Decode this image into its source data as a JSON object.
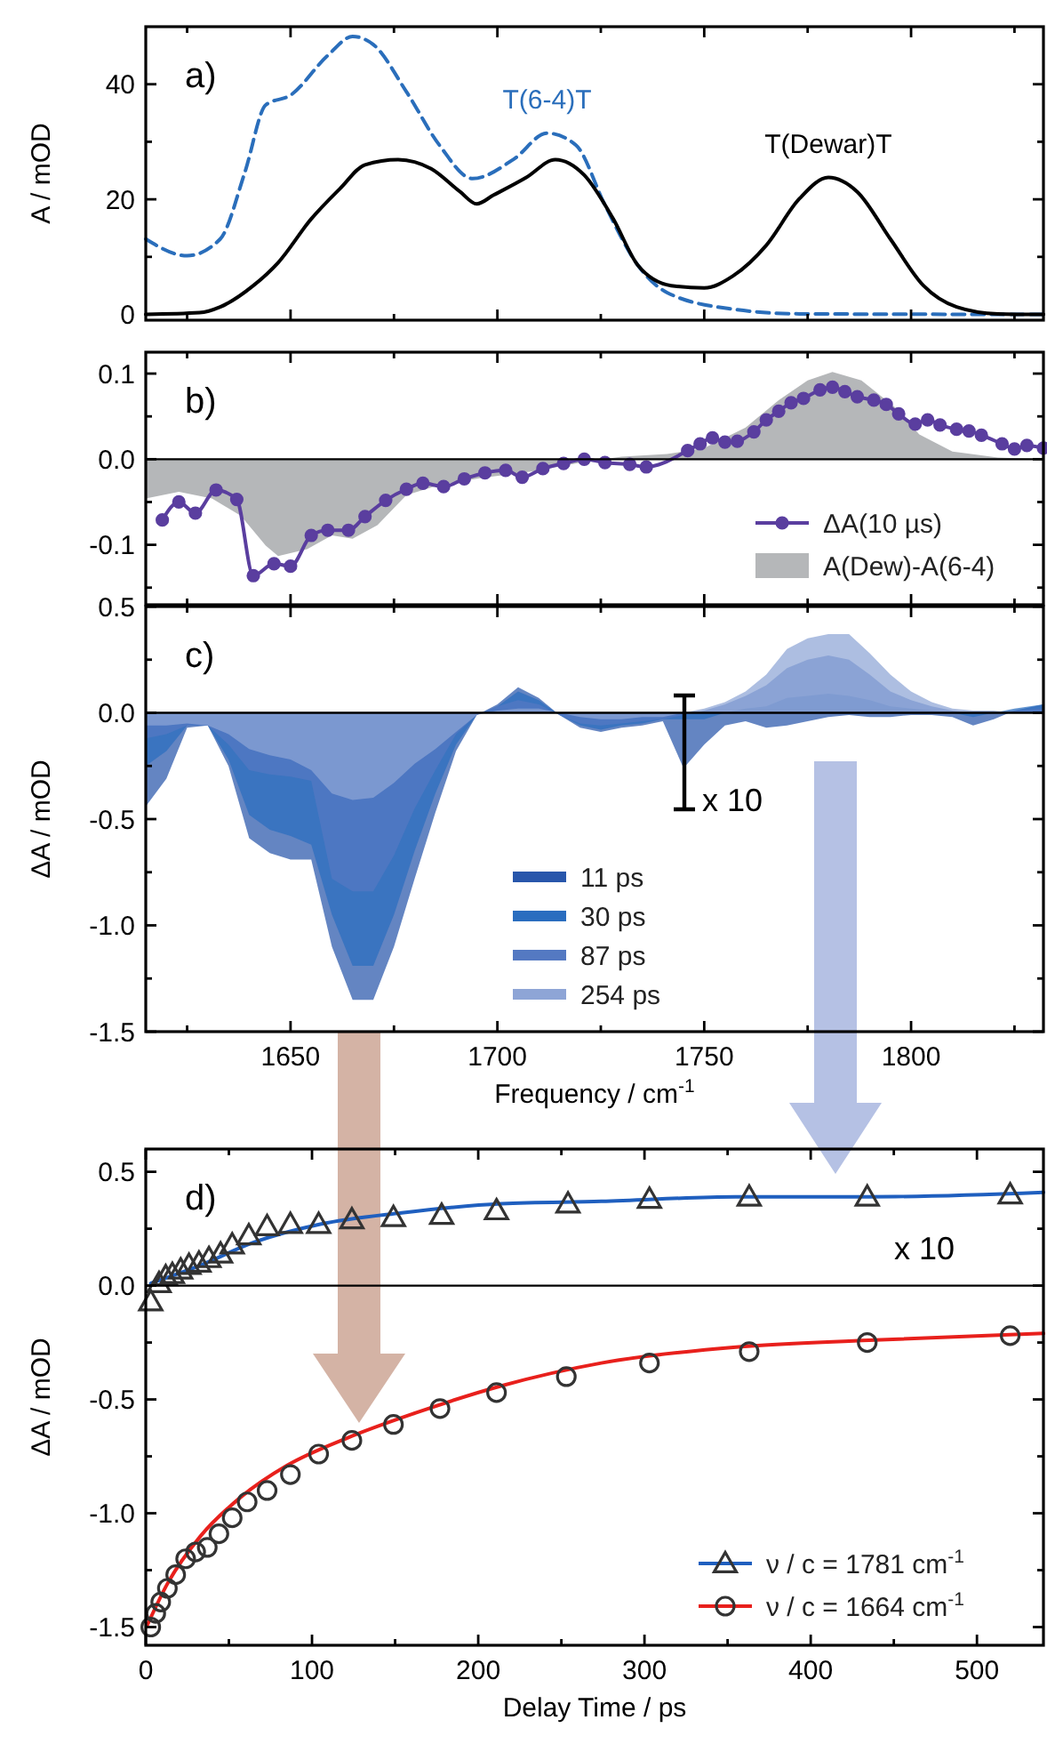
{
  "chart_data": [
    {
      "type": "line",
      "ylabel": "A / mOD",
      "annotations": [
        "a)"
      ],
      "xlim": [
        1615,
        1832
      ],
      "ylim": [
        -1,
        50
      ],
      "xticks": [
        1650,
        1700,
        1750,
        1800,
        {
          "value": 1625,
          "label": null
        },
        {
          "value": 1675,
          "label": null
        },
        {
          "value": 1725,
          "label": null
        },
        {
          "value": 1775,
          "label": null
        },
        {
          "value": 1825,
          "label": null
        }
      ],
      "yticks": [
        0,
        20,
        40,
        {
          "value": 10,
          "label": null
        },
        {
          "value": 30,
          "label": null
        }
      ],
      "tick_labels": "y",
      "series": [
        {
          "name": "T(6-4)T",
          "color": "#2a6ebb",
          "line_style": "dashed",
          "x": [
            1615,
            1625,
            1633,
            1639,
            1644,
            1650,
            1659,
            1665,
            1670,
            1678,
            1686,
            1694,
            1704,
            1712,
            1719,
            1726,
            1734,
            1741,
            1757,
            1773,
            1832
          ],
          "values": [
            13.1,
            10.2,
            13.1,
            24.8,
            36.4,
            38.1,
            45,
            48.3,
            46.9,
            38.7,
            29.4,
            23.6,
            27,
            31.5,
            29.4,
            19,
            8.5,
            3.8,
            0.9,
            0.1,
            0
          ]
        },
        {
          "name": "T(Dewar)T",
          "color": "#000000",
          "x": [
            1615,
            1628,
            1633,
            1641,
            1647,
            1655,
            1662,
            1668,
            1676,
            1684,
            1691,
            1695,
            1699,
            1707,
            1714,
            1721,
            1728,
            1734,
            1742,
            1750,
            1757,
            1765,
            1773,
            1780,
            1787,
            1795,
            1803,
            1811,
            1821,
            1832
          ],
          "values": [
            0,
            0.3,
            1.3,
            5,
            9,
            16.6,
            21.9,
            26,
            26.9,
            25.3,
            21.3,
            19.2,
            20.7,
            23.8,
            26.9,
            24.2,
            16.6,
            8.5,
            5,
            4.6,
            6.7,
            12,
            20.1,
            23.8,
            21.3,
            13.1,
            5,
            1.3,
            0.1,
            0
          ]
        }
      ]
    },
    {
      "type": "line",
      "annotations": [
        "b)"
      ],
      "xlim": [
        1615,
        1832
      ],
      "ylim": [
        -0.17,
        0.125
      ],
      "xticks": [
        1650,
        1700,
        1750,
        1800,
        {
          "value": 1625,
          "label": null
        },
        {
          "value": 1675,
          "label": null
        },
        {
          "value": 1725,
          "label": null
        },
        {
          "value": 1775,
          "label": null
        },
        {
          "value": 1825,
          "label": null
        }
      ],
      "yticks": [
        -0.1,
        {
          "value": 0,
          "label": "0.0"
        },
        0.1,
        {
          "value": -0.15,
          "label": null
        },
        {
          "value": -0.05,
          "label": null
        },
        {
          "value": 0.05,
          "label": null
        }
      ],
      "tick_labels": "y",
      "legend": "bottom right",
      "ref_lines": [
        {
          "axis": "y",
          "value": 0
        }
      ],
      "series": [
        {
          "name": "ΔA(10 µs)",
          "color": "#5a3e9f",
          "marker": "circle",
          "x": [
            1619,
            1623,
            1627,
            1632,
            1637,
            1641,
            1646,
            1650,
            1655,
            1659,
            1664,
            1668,
            1673,
            1678,
            1682,
            1687,
            1692,
            1697,
            1702,
            1706,
            1711,
            1716,
            1721,
            1726,
            1732,
            1736,
            1746,
            1749,
            1752,
            1755,
            1758,
            1762,
            1765,
            1768,
            1771,
            1774,
            1778,
            1781,
            1784,
            1787,
            1791,
            1794,
            1797,
            1801,
            1804,
            1807,
            1811,
            1814,
            1817,
            1822,
            1825,
            1828,
            1832
          ],
          "values": [
            -0.071,
            -0.05,
            -0.063,
            -0.036,
            -0.047,
            -0.136,
            -0.122,
            -0.125,
            -0.089,
            -0.083,
            -0.083,
            -0.067,
            -0.048,
            -0.035,
            -0.028,
            -0.032,
            -0.023,
            -0.016,
            -0.013,
            -0.021,
            -0.011,
            -0.005,
            0.0,
            -0.004,
            -0.006,
            -0.009,
            0.01,
            0.018,
            0.025,
            0.02,
            0.021,
            0.032,
            0.046,
            0.056,
            0.066,
            0.071,
            0.081,
            0.084,
            0.079,
            0.073,
            0.069,
            0.064,
            0.053,
            0.041,
            0.046,
            0.04,
            0.035,
            0.033,
            0.028,
            0.018,
            0.012,
            0.016,
            0.013
          ]
        },
        {
          "name": "A(Dew)-A(6-4)",
          "type": "area",
          "color": "#b5b7b9",
          "x": [
            1615,
            1623,
            1631,
            1638,
            1644,
            1647,
            1654,
            1660,
            1665,
            1671,
            1678,
            1686,
            1696,
            1709,
            1720,
            1730,
            1741,
            1750,
            1760,
            1768,
            1775,
            1781,
            1788,
            1796,
            1802,
            1810,
            1821,
            1832
          ],
          "values": [
            -0.046,
            -0.038,
            -0.046,
            -0.066,
            -0.101,
            -0.113,
            -0.105,
            -0.089,
            -0.093,
            -0.077,
            -0.042,
            -0.03,
            -0.022,
            -0.014,
            -0.004,
            0.003,
            0.006,
            0.013,
            0.037,
            0.069,
            0.092,
            0.102,
            0.092,
            0.061,
            0.029,
            0.009,
            0.002,
            0
          ]
        }
      ]
    },
    {
      "type": "area",
      "xlabel": "Frequency / cm$^{-1}$",
      "ylabel": "ΔA / mOD",
      "annotations": [
        "c)",
        "x 10"
      ],
      "xlim": [
        1615,
        1832
      ],
      "ylim": [
        -1.5,
        0.5
      ],
      "xticks": [
        1650,
        1700,
        1750,
        1800,
        {
          "value": 1625,
          "label": null
        },
        {
          "value": 1675,
          "label": null
        },
        {
          "value": 1725,
          "label": null
        },
        {
          "value": 1775,
          "label": null
        },
        {
          "value": 1825,
          "label": null
        }
      ],
      "yticks": [
        {
          "value": -1.5,
          "label": "-1.5"
        },
        {
          "value": -1,
          "label": "-1.0"
        },
        {
          "value": -0.5,
          "label": "-0.5"
        },
        {
          "value": 0,
          "label": "0.0"
        },
        {
          "value": 0.5,
          "label": "0.5"
        },
        {
          "value": -1.25,
          "label": null
        },
        {
          "value": -0.75,
          "label": null
        },
        {
          "value": -0.25,
          "label": null
        },
        {
          "value": 0.25,
          "label": null
        }
      ],
      "legend": "bottom",
      "ref_lines": [
        {
          "axis": "y",
          "value": 0
        }
      ],
      "x": [
        1615,
        1620,
        1625,
        1630,
        1635,
        1640,
        1645,
        1650,
        1655,
        1660,
        1665,
        1670,
        1675,
        1680,
        1685,
        1690,
        1695,
        1700,
        1705,
        1710,
        1715,
        1720,
        1725,
        1730,
        1735,
        1740,
        1745,
        1750,
        1755,
        1760,
        1765,
        1770,
        1775,
        1780,
        1785,
        1790,
        1795,
        1800,
        1805,
        1810,
        1815,
        1820,
        1825,
        1832
      ],
      "series": [
        {
          "name": "11 ps",
          "color": "#2856ab",
          "values": [
            -0.44,
            -0.31,
            -0.07,
            -0.06,
            -0.25,
            -0.59,
            -0.66,
            -0.69,
            -0.69,
            -1.1,
            -1.35,
            -1.35,
            -1.1,
            -0.78,
            -0.47,
            -0.18,
            -0.01,
            0.04,
            0.12,
            0.07,
            -0.01,
            -0.07,
            -0.09,
            -0.07,
            -0.06,
            -0.04,
            -0.26,
            -0.15,
            -0.06,
            -0.04,
            -0.07,
            -0.06,
            -0.04,
            -0.02,
            -0.01,
            -0.02,
            -0.02,
            -0.01,
            -0.01,
            -0.02,
            -0.06,
            -0.03,
            0.01,
            0.04
          ]
        },
        {
          "name": "30 ps",
          "color": "#2a6dbf",
          "values": [
            -0.25,
            -0.18,
            -0.06,
            -0.06,
            -0.22,
            -0.48,
            -0.55,
            -0.58,
            -0.62,
            -0.95,
            -1.19,
            -1.19,
            -0.95,
            -0.65,
            -0.38,
            -0.15,
            -0.01,
            0.03,
            0.1,
            0.06,
            -0.01,
            -0.06,
            -0.08,
            -0.06,
            -0.05,
            -0.03,
            -0.03,
            -0.03,
            0.0,
            0.02,
            0.03,
            0.07,
            0.08,
            0.09,
            0.08,
            0.06,
            0.03,
            0.02,
            0.01,
            0.0,
            -0.02,
            0.0,
            0.02,
            0.04
          ]
        },
        {
          "name": "87 ps",
          "color": "#5479c2",
          "values": [
            -0.12,
            -0.1,
            -0.06,
            -0.06,
            -0.15,
            -0.27,
            -0.29,
            -0.3,
            -0.32,
            -0.78,
            -0.84,
            -0.84,
            -0.67,
            -0.45,
            -0.27,
            -0.1,
            -0.01,
            0.03,
            0.06,
            0.04,
            -0.01,
            -0.05,
            -0.06,
            -0.05,
            -0.04,
            -0.03,
            -0.01,
            0.01,
            0.04,
            0.08,
            0.13,
            0.21,
            0.25,
            0.27,
            0.25,
            0.18,
            0.1,
            0.06,
            0.03,
            0.01,
            0.0,
            0.0,
            0.01,
            0.02
          ]
        },
        {
          "name": "254 ps",
          "color": "#8ea5d6",
          "values": [
            -0.06,
            -0.06,
            -0.05,
            -0.06,
            -0.1,
            -0.17,
            -0.2,
            -0.22,
            -0.27,
            -0.38,
            -0.41,
            -0.4,
            -0.33,
            -0.24,
            -0.17,
            -0.09,
            -0.01,
            0.01,
            0.02,
            0.02,
            0.0,
            -0.02,
            -0.03,
            -0.03,
            -0.02,
            -0.02,
            0.0,
            0.02,
            0.05,
            0.1,
            0.18,
            0.3,
            0.35,
            0.37,
            0.37,
            0.28,
            0.18,
            0.1,
            0.05,
            0.02,
            0.01,
            0.01,
            0.0,
            0.0
          ]
        }
      ]
    },
    {
      "type": "scatter",
      "xlabel": "Delay Time / ps",
      "ylabel": "ΔA / mOD",
      "annotations": [
        "d)",
        "x 10"
      ],
      "xlim": [
        0,
        540
      ],
      "ylim": [
        -1.58,
        0.6
      ],
      "xticks": [
        0,
        100,
        200,
        300,
        400,
        500,
        {
          "value": 50,
          "label": null
        },
        {
          "value": 150,
          "label": null
        },
        {
          "value": 250,
          "label": null
        },
        {
          "value": 350,
          "label": null
        },
        {
          "value": 450,
          "label": null
        }
      ],
      "yticks": [
        {
          "value": -1.5,
          "label": "-1.5"
        },
        {
          "value": -1,
          "label": "-1.0"
        },
        {
          "value": -0.5,
          "label": "-0.5"
        },
        {
          "value": 0,
          "label": "0.0"
        },
        {
          "value": 0.5,
          "label": "0.5"
        },
        {
          "value": -1.25,
          "label": null
        },
        {
          "value": -0.75,
          "label": null
        },
        {
          "value": -0.25,
          "label": null
        },
        {
          "value": 0.25,
          "label": null
        }
      ],
      "legend": "bottom right",
      "ref_lines": [
        {
          "axis": "y",
          "value": 0
        }
      ],
      "series": [
        {
          "color": "#333333",
          "marker": "triangle",
          "x": [
            3,
            8,
            12,
            16,
            21,
            26,
            32,
            38,
            45,
            52,
            62,
            73,
            87,
            104,
            124,
            149,
            178,
            211,
            254,
            303,
            363,
            434,
            520
          ],
          "values": [
            -0.07,
            0.01,
            0.04,
            0.05,
            0.07,
            0.09,
            0.1,
            0.12,
            0.14,
            0.18,
            0.22,
            0.26,
            0.27,
            0.27,
            0.29,
            0.3,
            0.31,
            0.33,
            0.36,
            0.38,
            0.39,
            0.39,
            0.4
          ]
        },
        {
          "name": "ν / c = 1781 cm$^{-1}$",
          "type": "line",
          "color": "#1f5fbf",
          "x": [
            3,
            33,
            65,
            105,
            154,
            214,
            274,
            355,
            435,
            540
          ],
          "values": [
            0.01,
            0.09,
            0.19,
            0.27,
            0.32,
            0.36,
            0.37,
            0.39,
            0.39,
            0.41
          ]
        },
        {
          "color": "#333333",
          "marker": "circle",
          "x": [
            3,
            6,
            9,
            13,
            18,
            24,
            30,
            37,
            44,
            52,
            61,
            73,
            87,
            104,
            124,
            149,
            177,
            211,
            253,
            303,
            363,
            434,
            520
          ],
          "values": [
            -1.5,
            -1.44,
            -1.39,
            -1.33,
            -1.27,
            -1.2,
            -1.17,
            -1.15,
            -1.09,
            -1.02,
            -0.95,
            -0.9,
            -0.83,
            -0.74,
            -0.68,
            -0.61,
            -0.54,
            -0.47,
            -0.4,
            -0.34,
            -0.29,
            -0.25,
            -0.22
          ]
        },
        {
          "name": "ν / c = 1664 cm$^{-1}$",
          "type": "line",
          "color": "#e8201c",
          "x": [
            1,
            13,
            33,
            57,
            85,
            121,
            162,
            214,
            274,
            355,
            435,
            540
          ],
          "values": [
            -1.49,
            -1.31,
            -1.1,
            -0.93,
            -0.79,
            -0.67,
            -0.56,
            -0.44,
            -0.34,
            -0.27,
            -0.24,
            -0.21
          ]
        }
      ]
    }
  ]
}
